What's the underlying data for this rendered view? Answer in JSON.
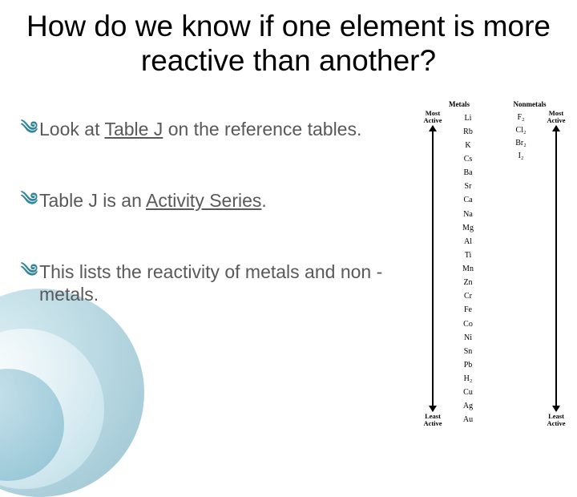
{
  "title": "How do we know if one element is more reactive than another?",
  "bullets": [
    {
      "pre": "Look at ",
      "u": "Table J",
      "post": " on the reference tables."
    },
    {
      "pre": "Table J is an ",
      "u": "Activity Series",
      "post": "."
    },
    {
      "pre": "This lists the reactivity of metals and non -metals.",
      "u": "",
      "post": ""
    }
  ],
  "bullet_glyph": "།",
  "table_j": {
    "top_label": "Most\nActive",
    "bottom_label": "Least\nActive",
    "metals": {
      "header": "Metals",
      "items": [
        "Li",
        "Rb",
        "K",
        "Cs",
        "Ba",
        "Sr",
        "Ca",
        "Na",
        "Mg",
        "Al",
        "Ti",
        "Mn",
        "Zn",
        "Cr",
        "Fe",
        "Co",
        "Ni",
        "Sn",
        "Pb",
        "H₂",
        "Cu",
        "Ag",
        "Au"
      ]
    },
    "nonmetals": {
      "header": "Nonmetals",
      "items": [
        "F₂",
        "Cl₂",
        "Br₂",
        "I₂"
      ]
    }
  },
  "colors": {
    "title": "#000000",
    "body_text": "#595959",
    "accent": "#31859b",
    "background": "#ffffff"
  }
}
